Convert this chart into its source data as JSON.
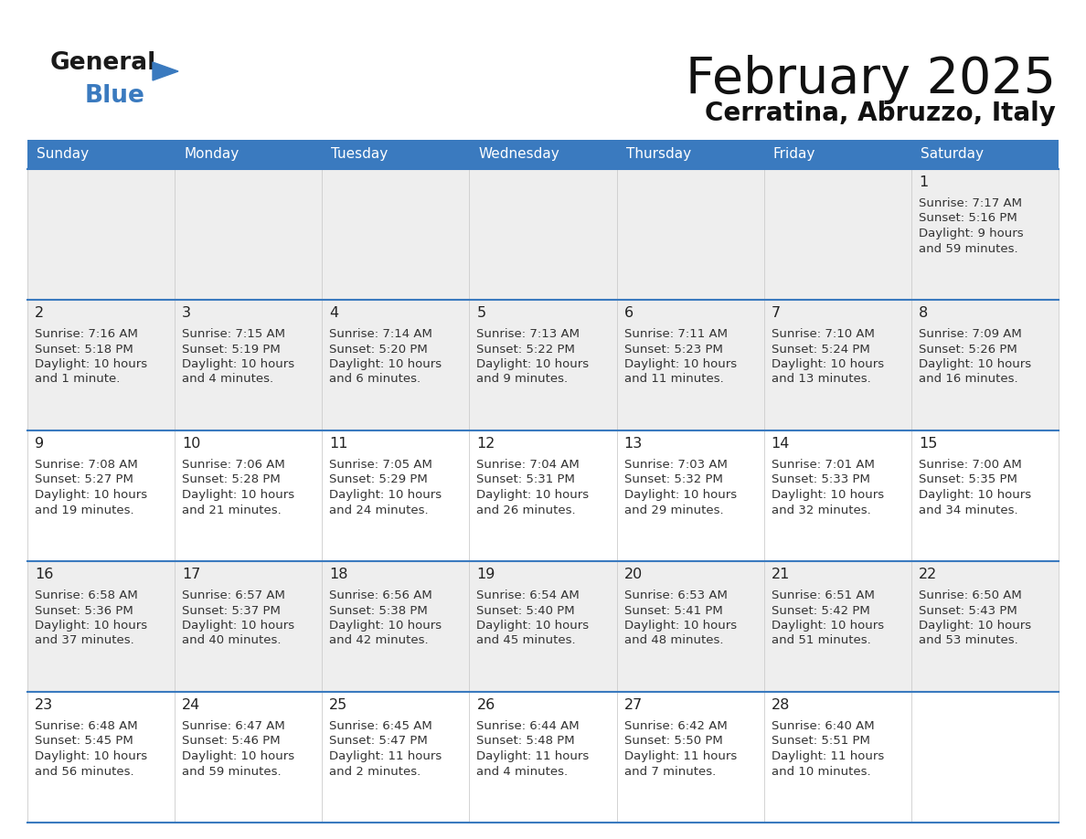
{
  "title": "February 2025",
  "subtitle": "Cerratina, Abruzzo, Italy",
  "header_color": "#3a7abf",
  "header_text_color": "#ffffff",
  "days_of_week": [
    "Sunday",
    "Monday",
    "Tuesday",
    "Wednesday",
    "Thursday",
    "Friday",
    "Saturday"
  ],
  "row0_bg": "#eeeeee",
  "row1_bg": "#eeeeee",
  "row2_bg": "#ffffff",
  "row3_bg": "#eeeeee",
  "row4_bg": "#ffffff",
  "border_color": "#3a7abf",
  "text_color": "#333333",
  "calendar": [
    [
      null,
      null,
      null,
      null,
      null,
      null,
      {
        "day": "1",
        "sunrise": "7:17 AM",
        "sunset": "5:16 PM",
        "daylight": "9 hours",
        "daylight2": "and 59 minutes."
      }
    ],
    [
      {
        "day": "2",
        "sunrise": "7:16 AM",
        "sunset": "5:18 PM",
        "daylight": "10 hours",
        "daylight2": "and 1 minute."
      },
      {
        "day": "3",
        "sunrise": "7:15 AM",
        "sunset": "5:19 PM",
        "daylight": "10 hours",
        "daylight2": "and 4 minutes."
      },
      {
        "day": "4",
        "sunrise": "7:14 AM",
        "sunset": "5:20 PM",
        "daylight": "10 hours",
        "daylight2": "and 6 minutes."
      },
      {
        "day": "5",
        "sunrise": "7:13 AM",
        "sunset": "5:22 PM",
        "daylight": "10 hours",
        "daylight2": "and 9 minutes."
      },
      {
        "day": "6",
        "sunrise": "7:11 AM",
        "sunset": "5:23 PM",
        "daylight": "10 hours",
        "daylight2": "and 11 minutes."
      },
      {
        "day": "7",
        "sunrise": "7:10 AM",
        "sunset": "5:24 PM",
        "daylight": "10 hours",
        "daylight2": "and 13 minutes."
      },
      {
        "day": "8",
        "sunrise": "7:09 AM",
        "sunset": "5:26 PM",
        "daylight": "10 hours",
        "daylight2": "and 16 minutes."
      }
    ],
    [
      {
        "day": "9",
        "sunrise": "7:08 AM",
        "sunset": "5:27 PM",
        "daylight": "10 hours",
        "daylight2": "and 19 minutes."
      },
      {
        "day": "10",
        "sunrise": "7:06 AM",
        "sunset": "5:28 PM",
        "daylight": "10 hours",
        "daylight2": "and 21 minutes."
      },
      {
        "day": "11",
        "sunrise": "7:05 AM",
        "sunset": "5:29 PM",
        "daylight": "10 hours",
        "daylight2": "and 24 minutes."
      },
      {
        "day": "12",
        "sunrise": "7:04 AM",
        "sunset": "5:31 PM",
        "daylight": "10 hours",
        "daylight2": "and 26 minutes."
      },
      {
        "day": "13",
        "sunrise": "7:03 AM",
        "sunset": "5:32 PM",
        "daylight": "10 hours",
        "daylight2": "and 29 minutes."
      },
      {
        "day": "14",
        "sunrise": "7:01 AM",
        "sunset": "5:33 PM",
        "daylight": "10 hours",
        "daylight2": "and 32 minutes."
      },
      {
        "day": "15",
        "sunrise": "7:00 AM",
        "sunset": "5:35 PM",
        "daylight": "10 hours",
        "daylight2": "and 34 minutes."
      }
    ],
    [
      {
        "day": "16",
        "sunrise": "6:58 AM",
        "sunset": "5:36 PM",
        "daylight": "10 hours",
        "daylight2": "and 37 minutes."
      },
      {
        "day": "17",
        "sunrise": "6:57 AM",
        "sunset": "5:37 PM",
        "daylight": "10 hours",
        "daylight2": "and 40 minutes."
      },
      {
        "day": "18",
        "sunrise": "6:56 AM",
        "sunset": "5:38 PM",
        "daylight": "10 hours",
        "daylight2": "and 42 minutes."
      },
      {
        "day": "19",
        "sunrise": "6:54 AM",
        "sunset": "5:40 PM",
        "daylight": "10 hours",
        "daylight2": "and 45 minutes."
      },
      {
        "day": "20",
        "sunrise": "6:53 AM",
        "sunset": "5:41 PM",
        "daylight": "10 hours",
        "daylight2": "and 48 minutes."
      },
      {
        "day": "21",
        "sunrise": "6:51 AM",
        "sunset": "5:42 PM",
        "daylight": "10 hours",
        "daylight2": "and 51 minutes."
      },
      {
        "day": "22",
        "sunrise": "6:50 AM",
        "sunset": "5:43 PM",
        "daylight": "10 hours",
        "daylight2": "and 53 minutes."
      }
    ],
    [
      {
        "day": "23",
        "sunrise": "6:48 AM",
        "sunset": "5:45 PM",
        "daylight": "10 hours",
        "daylight2": "and 56 minutes."
      },
      {
        "day": "24",
        "sunrise": "6:47 AM",
        "sunset": "5:46 PM",
        "daylight": "10 hours",
        "daylight2": "and 59 minutes."
      },
      {
        "day": "25",
        "sunrise": "6:45 AM",
        "sunset": "5:47 PM",
        "daylight": "11 hours",
        "daylight2": "and 2 minutes."
      },
      {
        "day": "26",
        "sunrise": "6:44 AM",
        "sunset": "5:48 PM",
        "daylight": "11 hours",
        "daylight2": "and 4 minutes."
      },
      {
        "day": "27",
        "sunrise": "6:42 AM",
        "sunset": "5:50 PM",
        "daylight": "11 hours",
        "daylight2": "and 7 minutes."
      },
      {
        "day": "28",
        "sunrise": "6:40 AM",
        "sunset": "5:51 PM",
        "daylight": "11 hours",
        "daylight2": "and 10 minutes."
      },
      null
    ]
  ]
}
